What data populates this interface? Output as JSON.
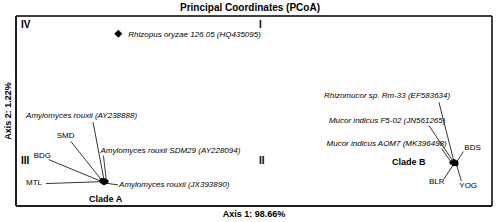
{
  "chart_data": {
    "type": "scatter",
    "title": "Principal Coordinates (PCoA)",
    "x_label": "Axis 1: 98.66%",
    "y_label": "Axis 2: 1.22%",
    "xlim": [
      -1,
      1
    ],
    "ylim": [
      -0.4,
      1
    ],
    "xticks": [
      0
    ],
    "yticks": [
      0
    ],
    "grid": true,
    "tick_labels": false,
    "quadrants": [
      "I",
      "II",
      "III",
      "IV"
    ],
    "series": [
      {
        "name": "Clade A",
        "color": "#000000",
        "marker": "circle",
        "points": [
          {
            "label": "Amylomyces rouxii (AY238888)",
            "x": -0.63,
            "y": -0.21
          },
          {
            "label": "SMD",
            "x": -0.64,
            "y": -0.21
          },
          {
            "label": "BDG",
            "x": -0.64,
            "y": -0.22
          },
          {
            "label": "Amylomyces rouxii SDM29 (AY228094)",
            "x": -0.62,
            "y": -0.22
          },
          {
            "label": "MTL",
            "x": -0.63,
            "y": -0.22
          },
          {
            "label": "Amylomyces rouxii (JX393890)",
            "x": -0.63,
            "y": -0.23
          }
        ]
      },
      {
        "name": "Clade B",
        "color": "#000000",
        "marker": "circle",
        "points": [
          {
            "label": "Rhizomucor sp. Rm-33 (EF583634)",
            "x": 0.84,
            "y": -0.07
          },
          {
            "label": "Mucor indicus F5-02 (JN561265)",
            "x": 0.84,
            "y": -0.08
          },
          {
            "label": "Mucor indicus AOM7 (MK396498)",
            "x": 0.83,
            "y": -0.08
          },
          {
            "label": "BDS",
            "x": 0.85,
            "y": -0.08
          },
          {
            "label": "BLR",
            "x": 0.84,
            "y": -0.09
          },
          {
            "label": "YOG",
            "x": 0.85,
            "y": -0.09
          }
        ]
      },
      {
        "color": "#000000",
        "marker": "diamond",
        "points": [
          {
            "label": "Rhizopus oryzae 126.05 (HQ435095)",
            "x": -0.57,
            "y": 0.87
          }
        ]
      }
    ]
  }
}
